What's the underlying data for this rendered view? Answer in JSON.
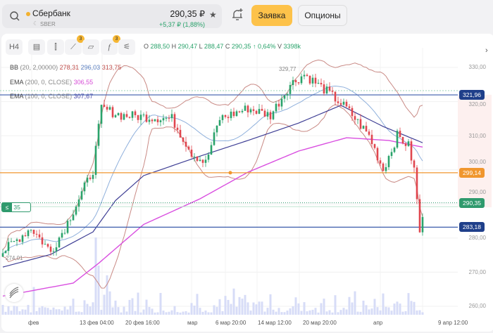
{
  "header": {
    "name": "Сбербанк",
    "ticker": "SBER",
    "price": "290,35 ₽",
    "change": "+5,37 ₽ (1,88%)",
    "order_button": "Заявка",
    "options_button": "Опционы"
  },
  "toolbar": {
    "timeframe": "H4",
    "badge_drawing": "3",
    "badge_indicators": "3"
  },
  "ohlc": {
    "o_label": "O",
    "o": "288,50",
    "h_label": "H",
    "h": "290,47",
    "l_label": "L",
    "l": "288,47",
    "c_label": "C",
    "c": "290,35",
    "change": "↑ 0,64%",
    "v_label": "V",
    "v": "3398k"
  },
  "indicators": [
    {
      "name": "BB",
      "params": "(20, 2,00000)",
      "values": [
        "278,31",
        "296,03",
        "313,75"
      ],
      "colors": [
        "#c0504d",
        "#5b7fc0",
        "#c0504d"
      ]
    },
    {
      "name": "EMA",
      "params": "(200, 0, CLOSE)",
      "values": [
        "306,55"
      ],
      "colors": [
        "#d64bd6"
      ]
    },
    {
      "name": "EMA",
      "params": "(100, 0, CLOSE)",
      "values": [
        "307,67"
      ],
      "colors": [
        "#4a4aa8"
      ]
    }
  ],
  "quantity": {
    "icon": "≤",
    "value": "35"
  },
  "price_axis": [
    "330,00",
    "320,00",
    "310,00",
    "300,00",
    "290,00",
    "280,00",
    "270,00",
    "260,00"
  ],
  "price_tags": [
    {
      "value": "321,96",
      "color": "#1f3f8a"
    },
    {
      "value": "299,14",
      "color": "#f0962e"
    },
    {
      "value": "290,35",
      "color": "#2f9a6d"
    },
    {
      "value": "283,18",
      "color": "#1f3f8a"
    }
  ],
  "time_axis": [
    "фев",
    "13 фев 04:00",
    "20 фев 16:00",
    "мар",
    "6 мар 20:00",
    "14 мар 12:00",
    "20 мар 20:00",
    "апр",
    "9 апр 12:00"
  ],
  "annotations": {
    "high": "329,77",
    "low": "274,01"
  },
  "chart_data": {
    "type": "candlestick",
    "ylim": [
      257,
      333
    ],
    "candles": 150,
    "close_waypoints": [
      [
        0,
        276
      ],
      [
        10,
        283
      ],
      [
        17,
        276
      ],
      [
        22,
        283
      ],
      [
        32,
        300
      ],
      [
        35,
        318
      ],
      [
        42,
        316
      ],
      [
        60,
        315
      ],
      [
        67,
        305
      ],
      [
        72,
        302
      ],
      [
        77,
        315
      ],
      [
        87,
        318
      ],
      [
        95,
        316
      ],
      [
        102,
        325
      ],
      [
        107,
        328
      ],
      [
        115,
        323
      ],
      [
        122,
        318
      ],
      [
        130,
        310
      ],
      [
        135,
        300
      ],
      [
        140,
        310
      ],
      [
        144,
        307
      ],
      [
        146,
        300
      ],
      [
        148,
        282
      ],
      [
        150,
        290.35
      ]
    ],
    "ema200": [
      [
        0,
        263
      ],
      [
        25,
        266.8
      ],
      [
        34,
        272.6
      ],
      [
        50,
        284
      ],
      [
        70,
        291.5
      ],
      [
        87,
        299.3
      ],
      [
        105,
        305.5
      ],
      [
        122,
        309.4
      ],
      [
        137,
        308.6
      ],
      [
        150,
        306.5
      ]
    ],
    "ema100": [
      [
        0,
        271.5
      ],
      [
        17,
        275.2
      ],
      [
        32,
        281.8
      ],
      [
        40,
        291
      ],
      [
        50,
        298.3
      ],
      [
        70,
        304
      ],
      [
        87,
        308.6
      ],
      [
        105,
        313.7
      ],
      [
        120,
        318.9
      ],
      [
        135,
        312.7
      ],
      [
        150,
        307.6
      ]
    ],
    "hlines": [
      {
        "price": 321.96,
        "color": "#3b5bab"
      },
      {
        "price": 299.14,
        "color": "#f0962e"
      },
      {
        "price": 283.18,
        "color": "#3b5bab"
      }
    ],
    "up_color": "#2aa36b",
    "down_color": "#e0464e"
  }
}
